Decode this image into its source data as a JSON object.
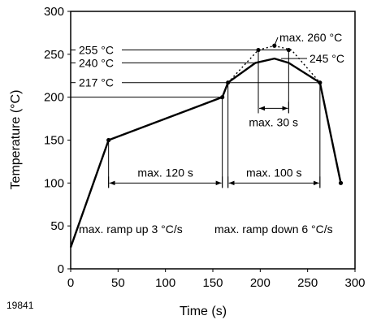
{
  "chart_data": {
    "type": "line",
    "title": "",
    "xlabel": "Time (s)",
    "ylabel": "Temperature (°C)",
    "xlim": [
      0,
      300
    ],
    "ylim": [
      0,
      300
    ],
    "x_ticks": [
      0,
      50,
      100,
      150,
      200,
      250,
      300
    ],
    "y_ticks": [
      0,
      50,
      100,
      150,
      200,
      250,
      300
    ],
    "grid": false,
    "series": [
      {
        "style": "solid",
        "x": [
          0,
          40,
          160,
          166,
          195,
          215,
          230,
          263,
          285
        ],
        "y": [
          25,
          150,
          200,
          217,
          240,
          245,
          240,
          217,
          100
        ]
      },
      {
        "style": "dotted",
        "x": [
          166,
          198,
          215,
          233,
          263
        ],
        "y": [
          217,
          255,
          260,
          255,
          217
        ]
      }
    ],
    "markers": [
      {
        "x": 40,
        "y": 150
      },
      {
        "x": 160,
        "y": 200
      },
      {
        "x": 166,
        "y": 217
      },
      {
        "x": 198,
        "y": 255
      },
      {
        "x": 215,
        "y": 260
      },
      {
        "x": 230,
        "y": 255
      },
      {
        "x": 263,
        "y": 217
      },
      {
        "x": 285,
        "y": 100
      }
    ],
    "reference_lines": [
      {
        "label": "255 °C",
        "y": 255
      },
      {
        "label": "240 °C",
        "y": 240
      },
      {
        "label": "217 °C",
        "y": 217
      },
      {
        "label": "",
        "y": 200
      }
    ],
    "peak_label": "max. 260 °C",
    "label_245": "245 °C",
    "dimensions": [
      {
        "label": "max. 120 s",
        "x1": 40,
        "x2": 160,
        "y": 100
      },
      {
        "label": "max. 100 s",
        "x1": 166,
        "x2": 263,
        "y": 100
      },
      {
        "label": "max. 30 s",
        "x1": 198,
        "x2": 230,
        "y": 187
      }
    ],
    "ramp_up_label": "max. ramp up 3 °C/s",
    "ramp_down_label": "max. ramp down 6 °C/s",
    "figure_code": "19841"
  }
}
